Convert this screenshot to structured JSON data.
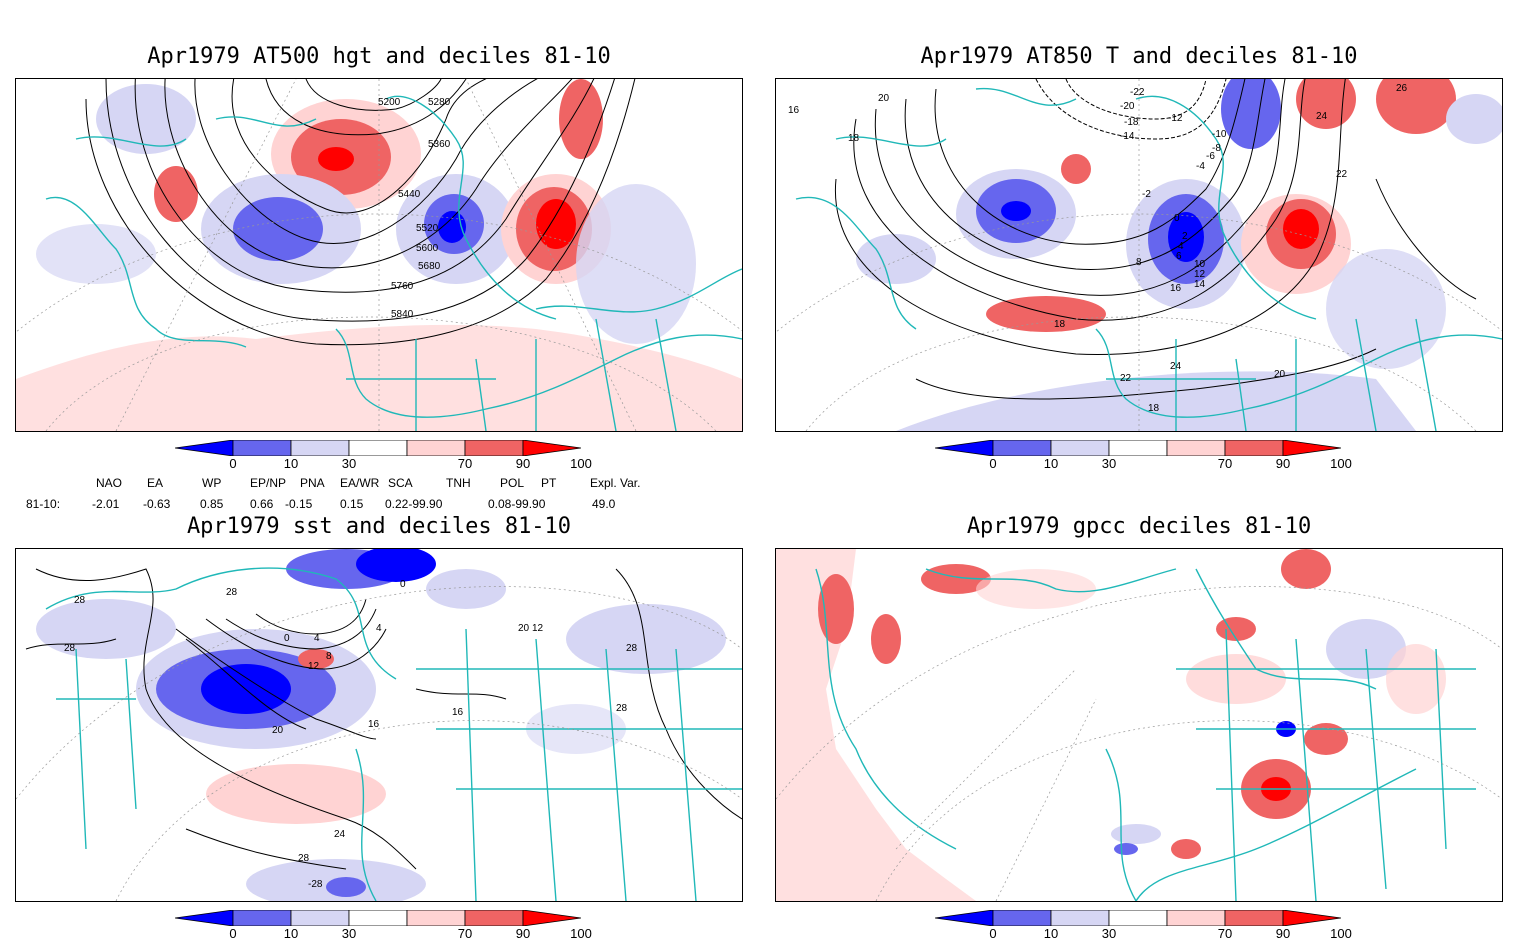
{
  "panels": [
    {
      "title": "Apr1979 AT500 hgt and deciles 81-10",
      "contour_labels": [
        "5200",
        "5280",
        "5360",
        "5440",
        "5520",
        "5600",
        "5680",
        "5760",
        "5840"
      ]
    },
    {
      "title": "Apr1979 AT850 T and deciles 81-10",
      "contour_labels": [
        "16",
        "18",
        "20",
        "22",
        "24",
        "26",
        "-22",
        "-20",
        "-18",
        "-14",
        "-12",
        "-10",
        "-8",
        "-6",
        "-4",
        "-2",
        "0",
        "2",
        "4",
        "6",
        "8",
        "10",
        "12",
        "14",
        "16",
        "18",
        "24",
        "22",
        "20",
        "18"
      ]
    },
    {
      "title": "Apr1979 sst and deciles 81-10",
      "contour_labels": [
        "28",
        "28",
        "0",
        "4",
        "8",
        "12",
        "16",
        "20",
        "24",
        "28",
        "28",
        "16",
        "20",
        "12",
        "28",
        "28",
        "4",
        "0",
        "-28"
      ]
    },
    {
      "title": "Apr1979 gpcc deciles 81-10",
      "contour_labels": []
    }
  ],
  "colorbar": {
    "ticks": [
      "0",
      "10",
      "30",
      "70",
      "90",
      "100"
    ],
    "colors": [
      "#0000ff",
      "#6666ee",
      "#d6d6f4",
      "#ffffff",
      "#ffd3d3",
      "#ef6464",
      "#ff0000"
    ]
  },
  "indices": {
    "headers": [
      "NAO",
      "EA",
      "WP",
      "EP/NP",
      "PNA",
      "EA/WR",
      "SCA",
      "TNH",
      "POL",
      "PT",
      "Expl. Var."
    ],
    "row_label": "81-10:",
    "values": [
      "-2.01",
      "-0.63",
      "0.85",
      "0.66",
      "-0.15",
      "0.15",
      "0.22-99.90",
      "",
      "0.08-99.90",
      "",
      "49.0"
    ]
  },
  "colors": {
    "coast": "#20b8b8",
    "contour": "#000000"
  }
}
